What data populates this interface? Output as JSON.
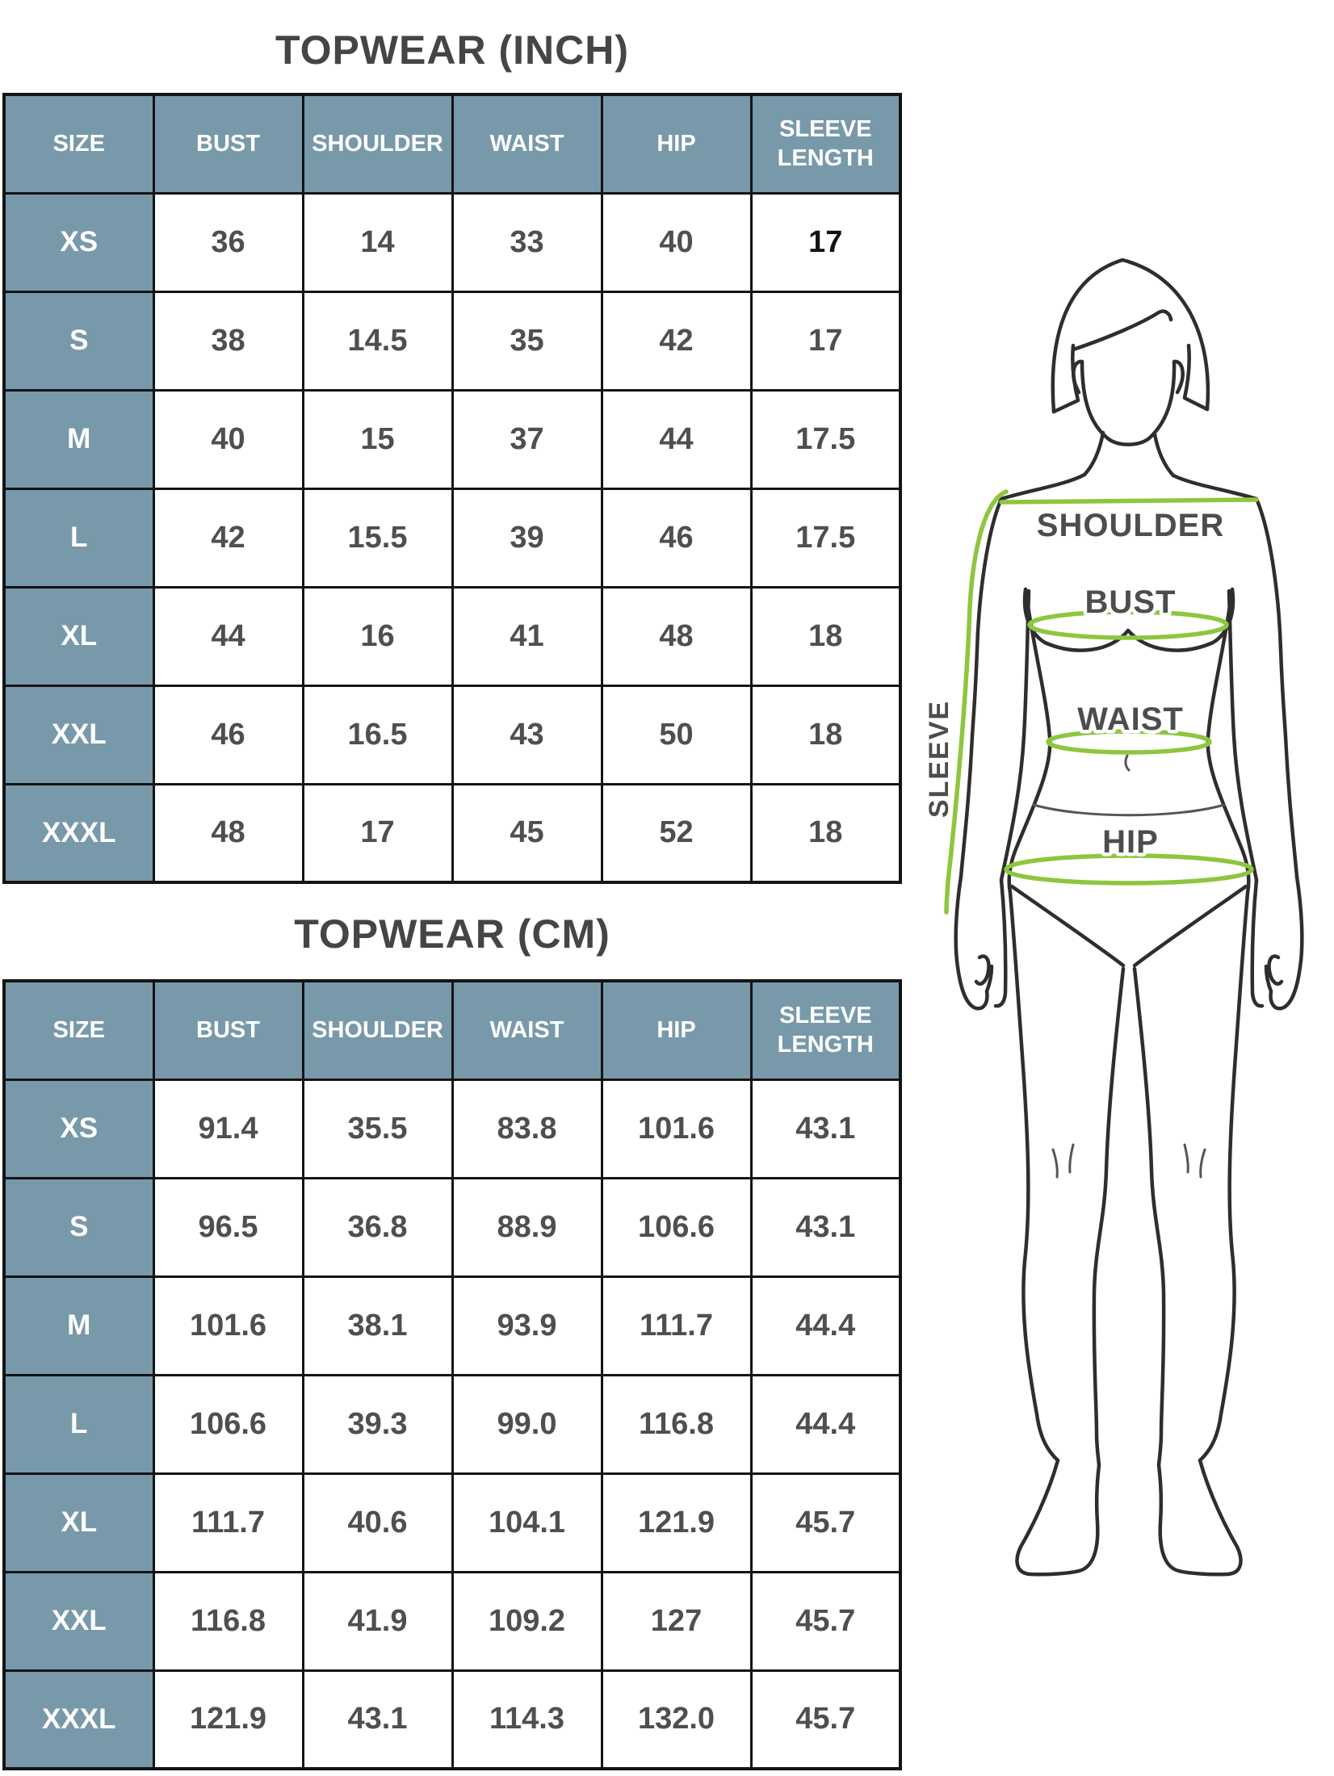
{
  "colors": {
    "header_bg": "#7899a9",
    "border": "#141414",
    "title": "#454545",
    "value_text": "#4f4f4f",
    "value_text_dark": "#141414",
    "header_text": "#ffffff",
    "measure_green": "#8dc63f",
    "figure_stroke": "#2e2e2e",
    "label_gray": "#4d4d4d",
    "page_bg": "#ffffff"
  },
  "chart_data": [
    {
      "type": "table",
      "title": "TOPWEAR (INCH)",
      "unit": "INCH",
      "columns": [
        "SIZE",
        "BUST",
        "SHOULDER",
        "WAIST",
        "HIP",
        "SLEEVE LENGTH"
      ],
      "rows": [
        {
          "size": "XS",
          "values": [
            "36",
            "14",
            "33",
            "40",
            "17"
          ]
        },
        {
          "size": "S",
          "values": [
            "38",
            "14.5",
            "35",
            "42",
            "17"
          ]
        },
        {
          "size": "M",
          "values": [
            "40",
            "15",
            "37",
            "44",
            "17.5"
          ]
        },
        {
          "size": "L",
          "values": [
            "42",
            "15.5",
            "39",
            "46",
            "17.5"
          ]
        },
        {
          "size": "XL",
          "values": [
            "44",
            "16",
            "41",
            "48",
            "18"
          ]
        },
        {
          "size": "XXL",
          "values": [
            "46",
            "16.5",
            "43",
            "50",
            "18"
          ]
        },
        {
          "size": "XXXL",
          "values": [
            "48",
            "17",
            "45",
            "52",
            "18"
          ]
        }
      ],
      "highlight_cell": {
        "row": 0,
        "value_index": 4
      }
    },
    {
      "type": "table",
      "title": "TOPWEAR (CM)",
      "unit": "CM",
      "columns": [
        "SIZE",
        "BUST",
        "SHOULDER",
        "WAIST",
        "HIP",
        "SLEEVE LENGTH"
      ],
      "rows": [
        {
          "size": "XS",
          "values": [
            "91.4",
            "35.5",
            "83.8",
            "101.6",
            "43.1"
          ]
        },
        {
          "size": "S",
          "values": [
            "96.5",
            "36.8",
            "88.9",
            "106.6",
            "43.1"
          ]
        },
        {
          "size": "M",
          "values": [
            "101.6",
            "38.1",
            "93.9",
            "111.7",
            "44.4"
          ]
        },
        {
          "size": "L",
          "values": [
            "106.6",
            "39.3",
            "99.0",
            "116.8",
            "44.4"
          ]
        },
        {
          "size": "XL",
          "values": [
            "111.7",
            "40.6",
            "104.1",
            "121.9",
            "45.7"
          ]
        },
        {
          "size": "XXL",
          "values": [
            "116.8",
            "41.9",
            "109.2",
            "127",
            "45.7"
          ]
        },
        {
          "size": "XXXL",
          "values": [
            "121.9",
            "43.1",
            "114.3",
            "132.0",
            "45.7"
          ]
        }
      ]
    }
  ],
  "figure": {
    "labels": {
      "shoulder": "SHOULDER",
      "bust": "BUST",
      "waist": "WAIST",
      "hip": "HIP",
      "sleeve": "SLEEVE"
    }
  }
}
